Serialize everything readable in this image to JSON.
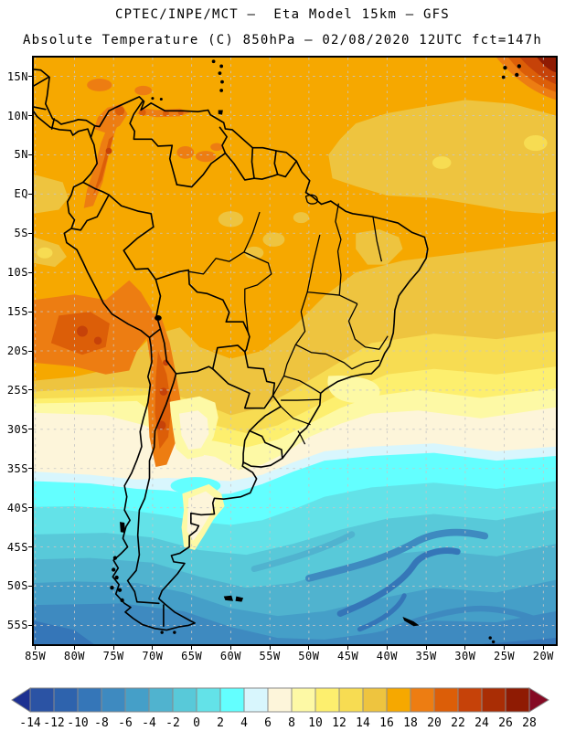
{
  "header": {
    "line1": "CPTEC/INPE/MCT –  Eta Model 15km – GFS",
    "line2": "Absolute Temperature (C) 850hPa – 02/08/2020 12UTC fct=147h"
  },
  "axes": {
    "lat": [
      {
        "label": "15N",
        "lat": 15
      },
      {
        "label": "10N",
        "lat": 10
      },
      {
        "label": "5N",
        "lat": 5
      },
      {
        "label": "EQ",
        "lat": 0
      },
      {
        "label": "5S",
        "lat": -5
      },
      {
        "label": "10S",
        "lat": -10
      },
      {
        "label": "15S",
        "lat": -15
      },
      {
        "label": "20S",
        "lat": -20
      },
      {
        "label": "25S",
        "lat": -25
      },
      {
        "label": "30S",
        "lat": -30
      },
      {
        "label": "35S",
        "lat": -35
      },
      {
        "label": "40S",
        "lat": -40
      },
      {
        "label": "45S",
        "lat": -45
      },
      {
        "label": "50S",
        "lat": -50
      },
      {
        "label": "55S",
        "lat": -55
      }
    ],
    "lon": [
      {
        "label": "85W",
        "lon": -85
      },
      {
        "label": "80W",
        "lon": -80
      },
      {
        "label": "75W",
        "lon": -75
      },
      {
        "label": "70W",
        "lon": -70
      },
      {
        "label": "65W",
        "lon": -65
      },
      {
        "label": "60W",
        "lon": -60
      },
      {
        "label": "55W",
        "lon": -55
      },
      {
        "label": "50W",
        "lon": -50
      },
      {
        "label": "45W",
        "lon": -45
      },
      {
        "label": "40W",
        "lon": -40
      },
      {
        "label": "35W",
        "lon": -35
      },
      {
        "label": "30W",
        "lon": -30
      },
      {
        "label": "25W",
        "lon": -25
      },
      {
        "label": "20W",
        "lon": -20
      }
    ]
  },
  "colorbar": {
    "tick_labels": [
      "-14",
      "-12",
      "-10",
      "-8",
      "-6",
      "-4",
      "-2",
      "0",
      "2",
      "4",
      "6",
      "8",
      "10",
      "12",
      "14",
      "16",
      "18",
      "20",
      "22",
      "24",
      "26",
      "28"
    ],
    "cell_colors": [
      "#2b53a4",
      "#2e63ad",
      "#3576b8",
      "#3e8ac0",
      "#459fc8",
      "#50b3cf",
      "#58c9d9",
      "#63e2e8",
      "#63ffff",
      "#d8f6fd",
      "#fdf5da",
      "#fdf9a5",
      "#fdef6e",
      "#f7dc52",
      "#eec43f",
      "#f6a800",
      "#ed7d12",
      "#dc5e08",
      "#c64209",
      "#a92d05",
      "#8f1b03"
    ],
    "arrow_left_color": "#1d3091",
    "arrow_right_color": "#850a24",
    "cell_border_color": "#8a8a8a"
  },
  "map": {
    "grid_color": "#c6c6c6",
    "border_color": "#000000",
    "base_fill_temp_range": "16-18",
    "units": "C"
  }
}
